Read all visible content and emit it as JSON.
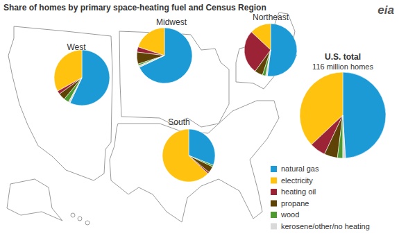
{
  "title": "Share of homes by primary space-heating fuel and Census Region",
  "logo": "eia",
  "chart_data": [
    {
      "type": "pie",
      "title": "West",
      "values": [
        57,
        33,
        2,
        4,
        3,
        1
      ],
      "colors": [
        "#1c9ad6",
        "#ffc20e",
        "#9b2335",
        "#5e4206",
        "#4e9a2f",
        "#d9d9d9"
      ]
    },
    {
      "type": "pie",
      "title": "Midwest",
      "values": [
        68,
        20,
        3,
        7,
        1,
        1
      ],
      "colors": [
        "#1c9ad6",
        "#ffc20e",
        "#9b2335",
        "#5e4206",
        "#4e9a2f",
        "#d9d9d9"
      ]
    },
    {
      "type": "pie",
      "title": "Northeast",
      "values": [
        52,
        13,
        27,
        5,
        2,
        1
      ],
      "colors": [
        "#1c9ad6",
        "#ffc20e",
        "#9b2335",
        "#5e4206",
        "#4e9a2f",
        "#d9d9d9"
      ]
    },
    {
      "type": "pie",
      "title": "South",
      "values": [
        31,
        63,
        1,
        4,
        1,
        0
      ],
      "colors": [
        "#1c9ad6",
        "#ffc20e",
        "#9b2335",
        "#5e4206",
        "#4e9a2f",
        "#d9d9d9"
      ]
    },
    {
      "type": "pie",
      "title": "U.S. total",
      "subtitle": "116 million homes",
      "categories": [
        "natural gas",
        "electricity",
        "heating oil",
        "propane",
        "wood",
        "kerosene/other/no heating"
      ],
      "values": [
        49,
        37,
        6,
        5,
        2,
        1
      ],
      "colors": [
        "#1c9ad6",
        "#ffc20e",
        "#9b2335",
        "#5e4206",
        "#4e9a2f",
        "#d9d9d9"
      ],
      "legend": "bottom-right"
    }
  ]
}
